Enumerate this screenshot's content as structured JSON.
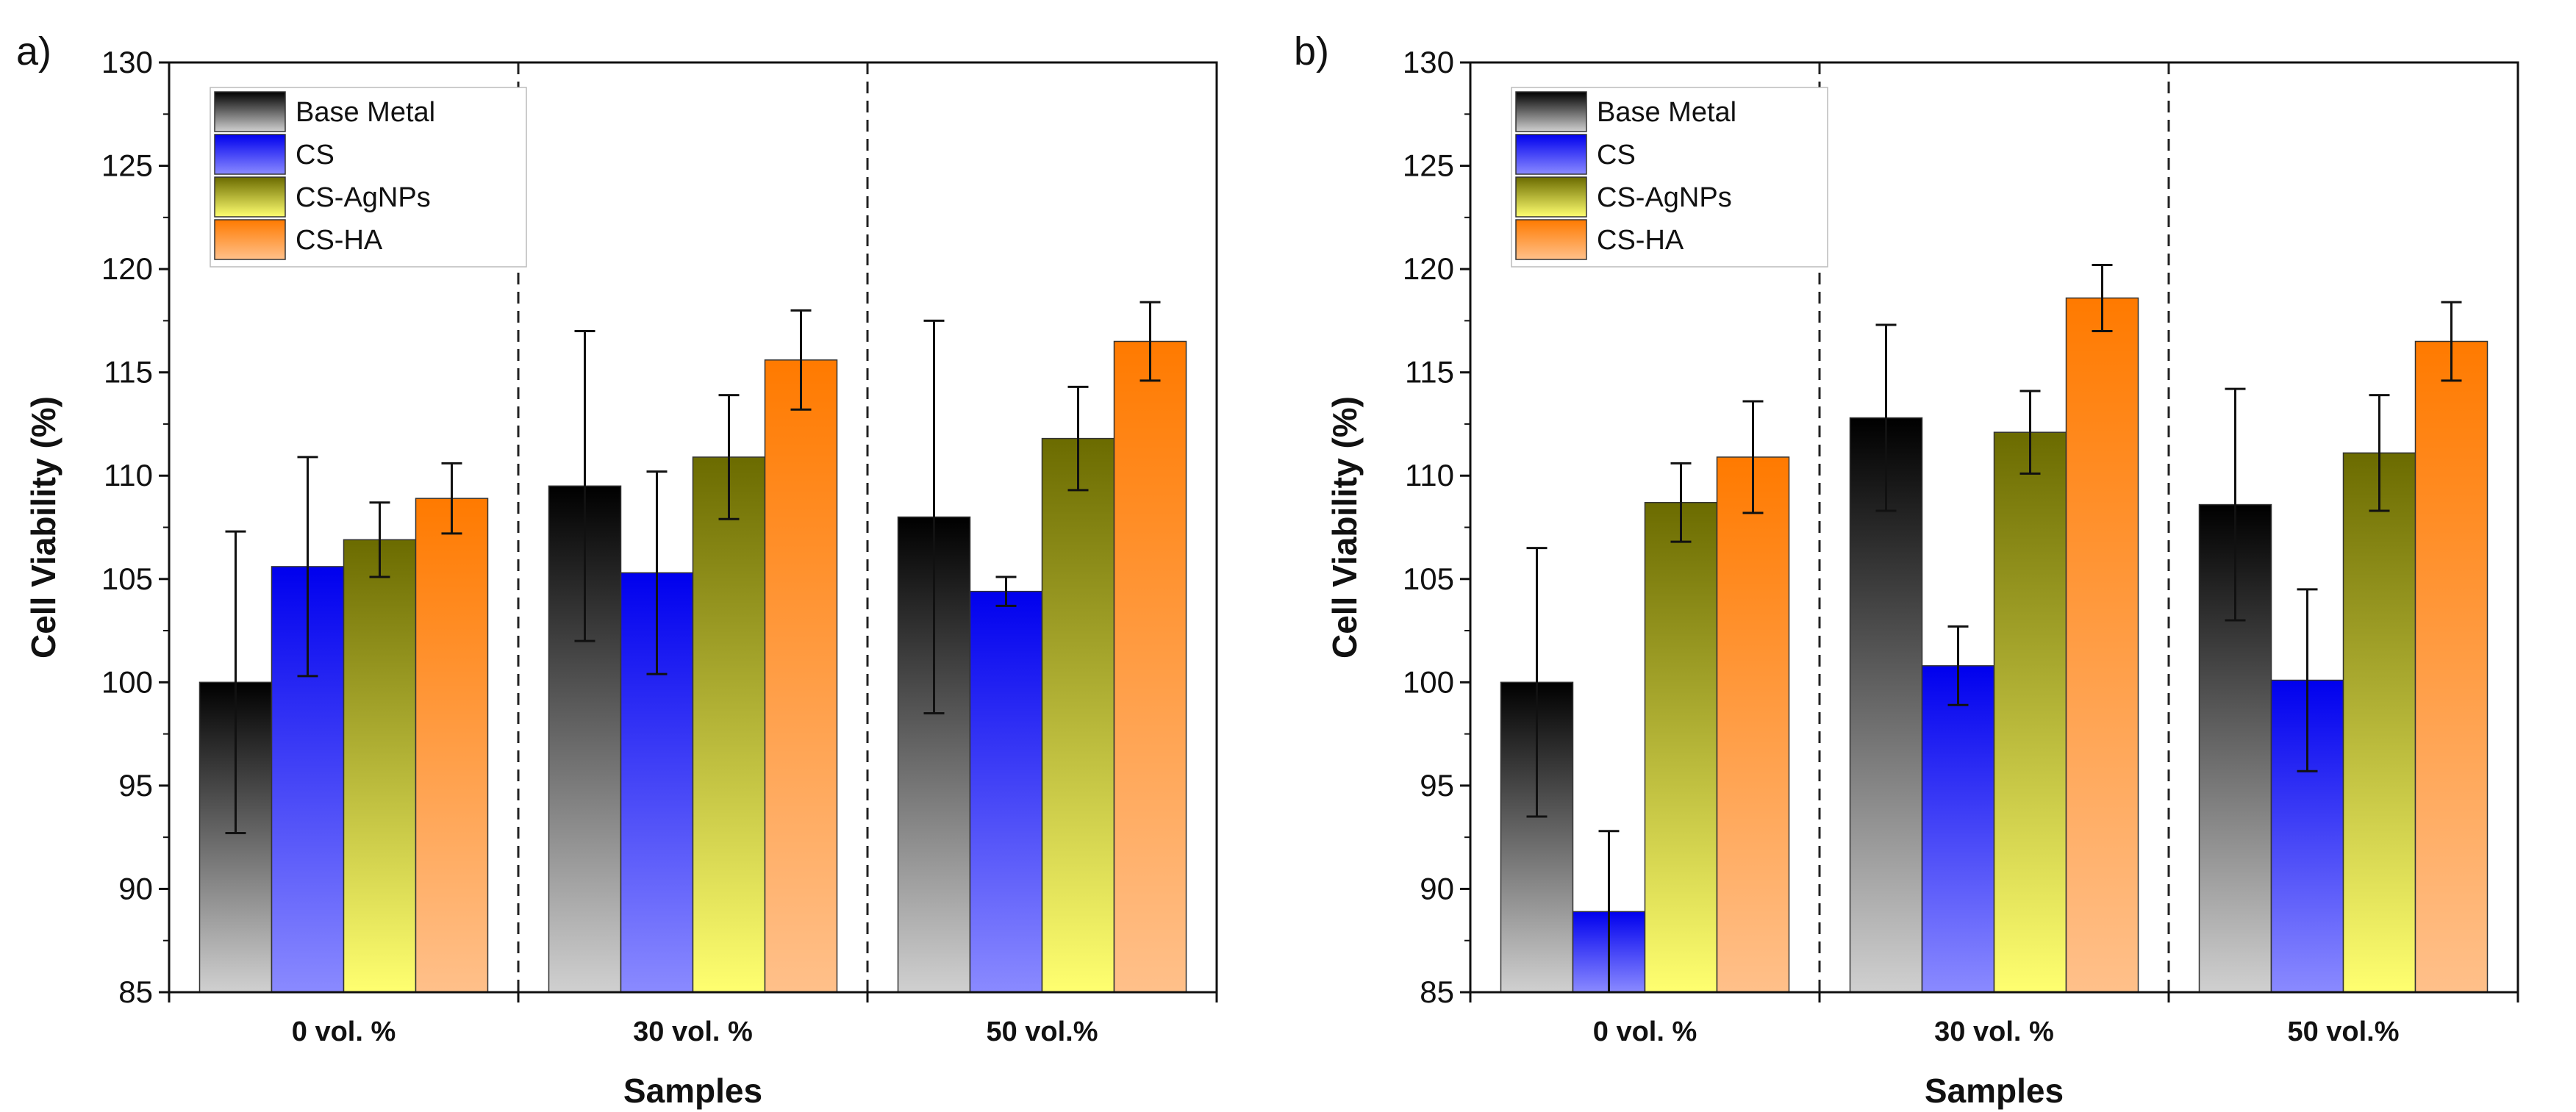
{
  "chart_data": [
    {
      "type": "bar",
      "panel_label": "a)",
      "xlabel": "Samples",
      "ylabel": "Cell Viability (%)",
      "ylim": [
        85,
        130
      ],
      "yticks": [
        85,
        90,
        95,
        100,
        105,
        110,
        115,
        120,
        125,
        130
      ],
      "categories": [
        "0 vol. %",
        "30 vol. %",
        "50 vol.%"
      ],
      "legend_position": "top-left",
      "series": [
        {
          "name": "Base Metal",
          "values": [
            100.0,
            109.5,
            108.0
          ],
          "errors": [
            7.3,
            7.5,
            9.5
          ]
        },
        {
          "name": "CS",
          "values": [
            105.6,
            105.3,
            104.4
          ],
          "errors": [
            5.3,
            4.9,
            0.7
          ]
        },
        {
          "name": "CS-AgNPs",
          "values": [
            106.9,
            110.9,
            111.8
          ],
          "errors": [
            1.8,
            3.0,
            2.5
          ]
        },
        {
          "name": "CS-HA",
          "values": [
            108.9,
            115.6,
            116.5
          ],
          "errors": [
            1.7,
            2.4,
            1.9
          ]
        }
      ]
    },
    {
      "type": "bar",
      "panel_label": "b)",
      "xlabel": "Samples",
      "ylabel": "Cell Viability (%)",
      "ylim": [
        85,
        130
      ],
      "yticks": [
        85,
        90,
        95,
        100,
        105,
        110,
        115,
        120,
        125,
        130
      ],
      "categories": [
        "0 vol. %",
        "30 vol. %",
        "50 vol.%"
      ],
      "legend_position": "top-left",
      "series": [
        {
          "name": "Base Metal",
          "values": [
            100.0,
            112.8,
            108.6
          ],
          "errors": [
            6.5,
            4.5,
            5.6
          ]
        },
        {
          "name": "CS",
          "values": [
            88.9,
            100.8,
            100.1
          ],
          "errors": [
            3.9,
            1.9,
            4.4
          ]
        },
        {
          "name": "CS-AgNPs",
          "values": [
            108.7,
            112.1,
            111.1
          ],
          "errors": [
            1.9,
            2.0,
            2.8
          ]
        },
        {
          "name": "CS-HA",
          "values": [
            110.9,
            118.6,
            116.5
          ],
          "errors": [
            2.7,
            1.6,
            1.9
          ]
        }
      ]
    }
  ],
  "colors": {
    "Base Metal": [
      "#000000",
      "#d0d0d0"
    ],
    "CS": [
      "#0000ee",
      "#8a8aff"
    ],
    "CS-AgNPs": [
      "#6b6b00",
      "#ffff70"
    ],
    "CS-HA": [
      "#ff7a00",
      "#ffc08a"
    ]
  }
}
